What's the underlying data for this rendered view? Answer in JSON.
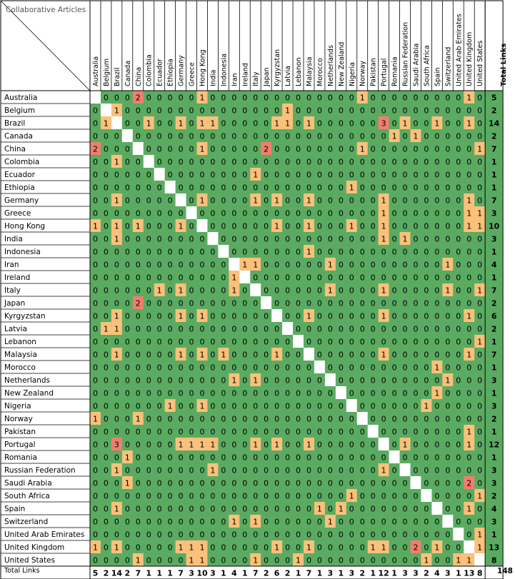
{
  "chart_data": {
    "type": "heatmap",
    "title": "",
    "corner_label": "Collaborative Articles",
    "total_label": "Total Links",
    "grand_total": 148,
    "countries": [
      "Australia",
      "Belgium",
      "Brazil",
      "Canada",
      "China",
      "Colombia",
      "Ecuador",
      "Ethiopia",
      "Germany",
      "Greece",
      "Hong Kong",
      "India",
      "Indonesia",
      "Iran",
      "Ireland",
      "Italy",
      "Japan",
      "Kyrgyzstan",
      "Latvia",
      "Lebanon",
      "Malaysia",
      "Morocco",
      "Netherlands",
      "New Zealand",
      "Nigeria",
      "Norway",
      "Pakistan",
      "Portugal",
      "Romania",
      "Russian Federation",
      "Saudi Arabia",
      "South Africa",
      "Spain",
      "Switzerland",
      "United Arab Emirates",
      "United Kingdom",
      "United States"
    ],
    "matrix": [
      [
        null,
        0,
        0,
        0,
        2,
        0,
        0,
        0,
        0,
        0,
        1,
        0,
        0,
        0,
        0,
        0,
        0,
        0,
        0,
        0,
        0,
        0,
        0,
        0,
        0,
        1,
        0,
        0,
        0,
        0,
        0,
        0,
        0,
        0,
        0,
        1,
        0
      ],
      [
        0,
        null,
        1,
        0,
        0,
        0,
        0,
        0,
        0,
        0,
        0,
        0,
        0,
        0,
        0,
        0,
        0,
        0,
        1,
        0,
        0,
        0,
        0,
        0,
        0,
        0,
        0,
        0,
        0,
        0,
        0,
        0,
        0,
        0,
        0,
        0,
        0
      ],
      [
        0,
        1,
        null,
        0,
        0,
        1,
        0,
        0,
        1,
        0,
        1,
        1,
        0,
        0,
        0,
        0,
        0,
        1,
        1,
        0,
        1,
        0,
        0,
        0,
        0,
        0,
        0,
        3,
        0,
        1,
        0,
        0,
        1,
        0,
        0,
        1,
        0
      ],
      [
        0,
        0,
        0,
        null,
        0,
        0,
        0,
        0,
        0,
        0,
        0,
        0,
        0,
        0,
        0,
        0,
        0,
        0,
        0,
        0,
        0,
        0,
        0,
        0,
        0,
        0,
        0,
        0,
        1,
        0,
        1,
        0,
        0,
        0,
        0,
        0,
        0
      ],
      [
        2,
        0,
        0,
        0,
        null,
        0,
        0,
        0,
        0,
        0,
        1,
        0,
        0,
        0,
        0,
        0,
        2,
        0,
        0,
        0,
        0,
        0,
        0,
        0,
        0,
        1,
        0,
        0,
        0,
        0,
        0,
        0,
        0,
        0,
        0,
        0,
        1
      ],
      [
        0,
        0,
        1,
        0,
        0,
        null,
        0,
        0,
        0,
        0,
        0,
        0,
        0,
        0,
        0,
        0,
        0,
        0,
        0,
        0,
        0,
        0,
        0,
        0,
        0,
        0,
        0,
        0,
        0,
        0,
        0,
        0,
        0,
        0,
        0,
        0,
        0
      ],
      [
        0,
        0,
        0,
        0,
        0,
        0,
        null,
        0,
        0,
        0,
        0,
        0,
        0,
        0,
        0,
        1,
        0,
        0,
        0,
        0,
        0,
        0,
        0,
        0,
        0,
        0,
        0,
        0,
        0,
        0,
        0,
        0,
        0,
        0,
        0,
        0,
        0
      ],
      [
        0,
        0,
        0,
        0,
        0,
        0,
        0,
        null,
        0,
        0,
        0,
        0,
        0,
        0,
        0,
        0,
        0,
        0,
        0,
        0,
        0,
        0,
        0,
        0,
        1,
        0,
        0,
        0,
        0,
        0,
        0,
        0,
        0,
        0,
        0,
        0,
        0
      ],
      [
        0,
        0,
        1,
        0,
        0,
        0,
        0,
        0,
        null,
        0,
        1,
        0,
        0,
        0,
        0,
        1,
        0,
        1,
        0,
        0,
        1,
        0,
        0,
        0,
        0,
        0,
        0,
        1,
        0,
        0,
        0,
        0,
        0,
        0,
        0,
        1,
        0
      ],
      [
        0,
        0,
        0,
        0,
        0,
        0,
        0,
        0,
        0,
        null,
        0,
        0,
        0,
        0,
        0,
        0,
        0,
        0,
        0,
        0,
        0,
        0,
        0,
        0,
        0,
        0,
        0,
        1,
        0,
        0,
        0,
        0,
        0,
        0,
        0,
        1,
        1
      ],
      [
        1,
        0,
        1,
        0,
        1,
        0,
        0,
        0,
        1,
        0,
        null,
        0,
        0,
        0,
        0,
        0,
        0,
        1,
        0,
        0,
        1,
        0,
        0,
        0,
        1,
        0,
        0,
        1,
        0,
        0,
        0,
        0,
        0,
        0,
        0,
        1,
        1
      ],
      [
        0,
        0,
        1,
        0,
        0,
        0,
        0,
        0,
        0,
        0,
        0,
        null,
        0,
        0,
        0,
        0,
        0,
        0,
        0,
        0,
        0,
        0,
        0,
        0,
        0,
        0,
        0,
        1,
        0,
        1,
        0,
        0,
        0,
        0,
        0,
        0,
        0
      ],
      [
        0,
        0,
        0,
        0,
        0,
        0,
        0,
        0,
        0,
        0,
        0,
        0,
        null,
        0,
        0,
        0,
        0,
        0,
        0,
        0,
        1,
        0,
        0,
        0,
        0,
        0,
        0,
        0,
        0,
        0,
        0,
        0,
        0,
        0,
        0,
        0,
        0
      ],
      [
        0,
        0,
        0,
        0,
        0,
        0,
        0,
        0,
        0,
        0,
        0,
        0,
        0,
        null,
        1,
        1,
        0,
        0,
        0,
        0,
        0,
        0,
        1,
        0,
        0,
        0,
        0,
        0,
        0,
        0,
        0,
        0,
        0,
        1,
        0,
        0,
        0
      ],
      [
        0,
        0,
        0,
        0,
        0,
        0,
        0,
        0,
        0,
        0,
        0,
        0,
        0,
        1,
        null,
        0,
        0,
        0,
        0,
        0,
        0,
        0,
        0,
        0,
        0,
        0,
        0,
        0,
        0,
        0,
        0,
        0,
        0,
        0,
        0,
        0,
        0
      ],
      [
        0,
        0,
        0,
        0,
        0,
        0,
        1,
        0,
        1,
        0,
        0,
        0,
        0,
        1,
        0,
        null,
        0,
        0,
        0,
        0,
        0,
        0,
        1,
        0,
        0,
        0,
        0,
        1,
        0,
        0,
        0,
        0,
        0,
        1,
        0,
        0,
        1
      ],
      [
        0,
        0,
        0,
        0,
        2,
        0,
        0,
        0,
        0,
        0,
        0,
        0,
        0,
        0,
        0,
        0,
        null,
        0,
        0,
        0,
        0,
        0,
        0,
        0,
        0,
        0,
        0,
        0,
        0,
        0,
        0,
        0,
        0,
        0,
        0,
        0,
        0
      ],
      [
        0,
        0,
        1,
        0,
        0,
        0,
        0,
        0,
        1,
        0,
        1,
        0,
        0,
        0,
        0,
        0,
        0,
        null,
        0,
        0,
        1,
        0,
        0,
        0,
        0,
        0,
        0,
        1,
        0,
        0,
        0,
        0,
        0,
        0,
        0,
        1,
        0
      ],
      [
        0,
        1,
        1,
        0,
        0,
        0,
        0,
        0,
        0,
        0,
        0,
        0,
        0,
        0,
        0,
        0,
        0,
        0,
        null,
        0,
        0,
        0,
        0,
        0,
        0,
        0,
        0,
        0,
        0,
        0,
        0,
        0,
        0,
        0,
        0,
        0,
        0
      ],
      [
        0,
        0,
        0,
        0,
        0,
        0,
        0,
        0,
        0,
        0,
        0,
        0,
        0,
        0,
        0,
        0,
        0,
        0,
        0,
        null,
        0,
        0,
        0,
        0,
        0,
        0,
        0,
        0,
        0,
        0,
        0,
        0,
        0,
        0,
        0,
        0,
        1
      ],
      [
        0,
        0,
        1,
        0,
        0,
        0,
        0,
        0,
        1,
        0,
        1,
        0,
        1,
        0,
        0,
        0,
        0,
        1,
        0,
        0,
        null,
        0,
        0,
        0,
        0,
        0,
        0,
        1,
        0,
        0,
        0,
        0,
        0,
        0,
        0,
        1,
        0
      ],
      [
        0,
        0,
        0,
        0,
        0,
        0,
        0,
        0,
        0,
        0,
        0,
        0,
        0,
        0,
        0,
        0,
        0,
        0,
        0,
        0,
        0,
        null,
        0,
        0,
        0,
        0,
        0,
        0,
        0,
        0,
        0,
        0,
        1,
        0,
        0,
        0,
        0
      ],
      [
        0,
        0,
        0,
        0,
        0,
        0,
        0,
        0,
        0,
        0,
        0,
        0,
        0,
        1,
        0,
        1,
        0,
        0,
        0,
        0,
        0,
        0,
        null,
        0,
        0,
        0,
        0,
        0,
        0,
        0,
        0,
        0,
        0,
        1,
        0,
        0,
        0
      ],
      [
        0,
        0,
        0,
        0,
        0,
        0,
        0,
        0,
        0,
        0,
        0,
        0,
        0,
        0,
        0,
        0,
        0,
        0,
        0,
        0,
        0,
        0,
        0,
        null,
        0,
        0,
        0,
        0,
        0,
        0,
        0,
        0,
        1,
        0,
        0,
        0,
        0
      ],
      [
        0,
        0,
        0,
        0,
        0,
        0,
        0,
        1,
        0,
        0,
        1,
        0,
        0,
        0,
        0,
        0,
        0,
        0,
        0,
        0,
        0,
        0,
        0,
        0,
        null,
        0,
        0,
        0,
        0,
        0,
        0,
        1,
        0,
        0,
        0,
        0,
        0
      ],
      [
        1,
        0,
        0,
        0,
        1,
        0,
        0,
        0,
        0,
        0,
        0,
        0,
        0,
        0,
        0,
        0,
        0,
        0,
        0,
        0,
        0,
        0,
        0,
        0,
        0,
        null,
        0,
        0,
        0,
        0,
        0,
        0,
        0,
        0,
        0,
        0,
        0
      ],
      [
        0,
        0,
        0,
        0,
        0,
        0,
        0,
        0,
        0,
        0,
        0,
        0,
        0,
        0,
        0,
        0,
        0,
        0,
        0,
        0,
        0,
        0,
        0,
        0,
        0,
        0,
        null,
        0,
        0,
        0,
        0,
        0,
        0,
        0,
        0,
        1,
        0
      ],
      [
        0,
        0,
        3,
        0,
        0,
        0,
        0,
        0,
        1,
        1,
        1,
        1,
        0,
        0,
        0,
        1,
        0,
        1,
        0,
        0,
        1,
        0,
        0,
        0,
        0,
        0,
        0,
        null,
        0,
        1,
        0,
        0,
        0,
        0,
        0,
        1,
        0
      ],
      [
        0,
        0,
        0,
        1,
        0,
        0,
        0,
        0,
        0,
        0,
        0,
        0,
        0,
        0,
        0,
        0,
        0,
        0,
        0,
        0,
        0,
        0,
        0,
        0,
        0,
        0,
        0,
        0,
        null,
        0,
        0,
        0,
        0,
        0,
        0,
        0,
        0
      ],
      [
        0,
        0,
        1,
        0,
        0,
        0,
        0,
        0,
        0,
        0,
        0,
        1,
        0,
        0,
        0,
        0,
        0,
        0,
        0,
        0,
        0,
        0,
        0,
        0,
        0,
        0,
        0,
        1,
        0,
        null,
        0,
        0,
        0,
        0,
        0,
        0,
        0
      ],
      [
        0,
        0,
        0,
        1,
        0,
        0,
        0,
        0,
        0,
        0,
        0,
        0,
        0,
        0,
        0,
        0,
        0,
        0,
        0,
        0,
        0,
        0,
        0,
        0,
        0,
        0,
        0,
        0,
        0,
        0,
        null,
        0,
        0,
        0,
        0,
        2,
        0
      ],
      [
        0,
        0,
        0,
        0,
        0,
        0,
        0,
        0,
        0,
        0,
        0,
        0,
        0,
        0,
        0,
        0,
        0,
        0,
        0,
        0,
        0,
        0,
        0,
        0,
        1,
        0,
        0,
        0,
        0,
        0,
        0,
        null,
        0,
        0,
        0,
        0,
        1
      ],
      [
        0,
        0,
        1,
        0,
        0,
        0,
        0,
        0,
        0,
        0,
        0,
        0,
        0,
        0,
        0,
        0,
        0,
        0,
        0,
        0,
        0,
        1,
        0,
        1,
        0,
        0,
        0,
        0,
        0,
        0,
        0,
        0,
        null,
        0,
        0,
        1,
        0
      ],
      [
        0,
        0,
        0,
        0,
        0,
        0,
        0,
        0,
        0,
        0,
        0,
        0,
        0,
        1,
        0,
        1,
        0,
        0,
        0,
        0,
        0,
        0,
        1,
        0,
        0,
        0,
        0,
        0,
        0,
        0,
        0,
        0,
        0,
        null,
        0,
        0,
        0
      ],
      [
        0,
        0,
        0,
        0,
        0,
        0,
        0,
        0,
        0,
        0,
        0,
        0,
        0,
        0,
        0,
        0,
        0,
        0,
        0,
        0,
        0,
        0,
        0,
        0,
        0,
        0,
        0,
        0,
        0,
        0,
        0,
        0,
        0,
        0,
        null,
        0,
        1
      ],
      [
        1,
        0,
        1,
        0,
        0,
        0,
        0,
        0,
        1,
        1,
        1,
        0,
        0,
        0,
        0,
        0,
        0,
        1,
        0,
        0,
        1,
        0,
        0,
        0,
        0,
        0,
        1,
        1,
        0,
        0,
        2,
        0,
        1,
        0,
        0,
        null,
        1
      ],
      [
        0,
        0,
        0,
        0,
        1,
        0,
        0,
        0,
        0,
        1,
        1,
        0,
        0,
        0,
        0,
        1,
        0,
        0,
        0,
        1,
        0,
        0,
        0,
        0,
        0,
        0,
        0,
        0,
        0,
        0,
        0,
        1,
        0,
        0,
        1,
        1,
        null
      ]
    ],
    "row_totals": [
      5,
      2,
      14,
      2,
      7,
      1,
      1,
      1,
      7,
      3,
      10,
      3,
      1,
      4,
      1,
      7,
      2,
      6,
      2,
      1,
      7,
      1,
      3,
      1,
      3,
      2,
      1,
      12,
      1,
      3,
      3,
      2,
      4,
      3,
      1,
      13,
      8
    ],
    "col_totals": [
      5,
      2,
      14,
      2,
      7,
      1,
      1,
      1,
      7,
      3,
      10,
      3,
      1,
      4,
      1,
      7,
      2,
      6,
      2,
      1,
      7,
      1,
      3,
      1,
      3,
      2,
      1,
      12,
      1,
      3,
      3,
      2,
      4,
      3,
      1,
      13,
      8
    ],
    "colors": {
      "zero": "#5aab61",
      "one": "#fbc07a",
      "two_or_more": "#f07e6e",
      "diagonal": "#ffffff",
      "total_column": "#5aab61",
      "grid": "#000000"
    }
  }
}
